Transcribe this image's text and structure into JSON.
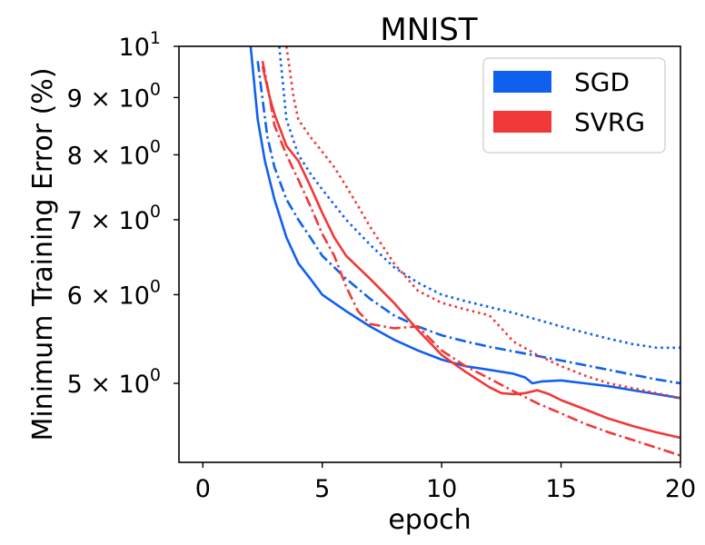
{
  "chart_data": {
    "type": "line",
    "title": "MNIST",
    "xlabel": "epoch",
    "ylabel": "Minimum Training Error (%)",
    "xlim": [
      -1.0,
      20.0
    ],
    "ylim": [
      4.25,
      10.0
    ],
    "yscale": "log",
    "grid": false,
    "legend_placement": "top-right",
    "x_ticks": [
      {
        "value": 0,
        "label": "0"
      },
      {
        "value": 5,
        "label": "5"
      },
      {
        "value": 10,
        "label": "10"
      },
      {
        "value": 15,
        "label": "15"
      },
      {
        "value": 20,
        "label": "20"
      }
    ],
    "y_ticks": [
      {
        "value": 10,
        "base": "10",
        "exp": "1"
      },
      {
        "value": 9,
        "base": "9 × 10",
        "exp": "0"
      },
      {
        "value": 8,
        "base": "8 × 10",
        "exp": "0"
      },
      {
        "value": 7,
        "base": "7 × 10",
        "exp": "0"
      },
      {
        "value": 6,
        "base": "6 × 10",
        "exp": "0"
      },
      {
        "value": 5,
        "base": "5 × 10",
        "exp": "0"
      }
    ],
    "legend": [
      {
        "label": "SGD",
        "color": "#1060f0"
      },
      {
        "label": "SVRG",
        "color": "#f03838"
      }
    ],
    "series": [
      {
        "group": "SGD",
        "color": "#1060f0",
        "style": "solid",
        "x": [
          2.0,
          2.3,
          2.6,
          3.0,
          3.5,
          4.0,
          4.5,
          5.0,
          6.0,
          7.0,
          8.0,
          9.0,
          10.0,
          11.0,
          12.0,
          13.0,
          13.5,
          13.8,
          14.2,
          15.0,
          16.0,
          17.0,
          18.0,
          19.0,
          20.0
        ],
        "y": [
          10.0,
          8.6,
          7.9,
          7.3,
          6.75,
          6.4,
          6.2,
          6.0,
          5.8,
          5.62,
          5.47,
          5.35,
          5.25,
          5.18,
          5.14,
          5.1,
          5.06,
          5.0,
          5.02,
          5.03,
          5.0,
          4.97,
          4.93,
          4.89,
          4.85
        ]
      },
      {
        "group": "SGD",
        "color": "#1060f0",
        "style": "dashdot",
        "x": [
          2.3,
          2.7,
          3.0,
          3.5,
          4.0,
          4.5,
          5.0,
          6.0,
          7.0,
          8.0,
          9.0,
          10.0,
          11.0,
          12.0,
          13.0,
          14.0,
          15.0,
          16.0,
          17.0,
          18.0,
          19.0,
          20.0
        ],
        "y": [
          9.7,
          8.3,
          7.8,
          7.3,
          7.0,
          6.75,
          6.5,
          6.2,
          5.95,
          5.75,
          5.62,
          5.52,
          5.45,
          5.39,
          5.34,
          5.29,
          5.24,
          5.19,
          5.14,
          5.09,
          5.04,
          5.0
        ]
      },
      {
        "group": "SGD",
        "color": "#1060f0",
        "style": "dotted",
        "x": [
          3.2,
          3.5,
          4.0,
          4.5,
          5.0,
          6.0,
          7.0,
          8.0,
          9.0,
          10.0,
          11.0,
          12.0,
          13.0,
          14.0,
          15.0,
          16.0,
          17.0,
          18.0,
          19.0,
          20.0
        ],
        "y": [
          10.0,
          8.6,
          8.0,
          7.7,
          7.45,
          7.0,
          6.65,
          6.35,
          6.15,
          6.0,
          5.92,
          5.85,
          5.78,
          5.7,
          5.62,
          5.55,
          5.48,
          5.42,
          5.38,
          5.38
        ]
      },
      {
        "group": "SVRG",
        "color": "#f03838",
        "style": "solid",
        "x": [
          2.5,
          2.8,
          3.0,
          3.5,
          4.0,
          4.5,
          5.0,
          5.5,
          6.0,
          7.0,
          8.0,
          9.0,
          10.0,
          11.0,
          12.0,
          12.5,
          13.0,
          13.5,
          14.0,
          14.5,
          15.0,
          16.0,
          17.0,
          18.0,
          19.0,
          20.0
        ],
        "y": [
          9.6,
          9.0,
          8.7,
          8.15,
          7.9,
          7.5,
          7.1,
          6.75,
          6.5,
          6.2,
          5.9,
          5.58,
          5.3,
          5.12,
          4.96,
          4.9,
          4.89,
          4.9,
          4.93,
          4.89,
          4.83,
          4.74,
          4.65,
          4.58,
          4.52,
          4.47
        ]
      },
      {
        "group": "SVRG",
        "color": "#f03838",
        "style": "dashdot",
        "x": [
          2.5,
          2.8,
          3.0,
          3.5,
          4.0,
          4.5,
          5.0,
          5.5,
          6.0,
          6.5,
          7.0,
          8.0,
          9.0,
          10.0,
          11.0,
          12.0,
          13.0,
          14.0,
          15.0,
          16.0,
          17.0,
          18.0,
          19.0,
          20.0
        ],
        "y": [
          9.7,
          9.0,
          8.5,
          8.0,
          7.6,
          7.2,
          6.8,
          6.5,
          6.1,
          5.8,
          5.65,
          5.6,
          5.62,
          5.35,
          5.18,
          5.05,
          4.92,
          4.8,
          4.7,
          4.6,
          4.52,
          4.45,
          4.38,
          4.31
        ]
      },
      {
        "group": "SVRG",
        "color": "#f03838",
        "style": "dotted",
        "x": [
          3.5,
          3.8,
          4.0,
          4.5,
          5.0,
          5.5,
          6.0,
          6.5,
          7.0,
          8.0,
          9.0,
          10.0,
          11.0,
          12.0,
          12.5,
          13.0,
          14.0,
          15.0,
          16.0,
          17.0,
          18.0,
          19.0,
          20.0
        ],
        "y": [
          10.0,
          9.0,
          8.6,
          8.3,
          8.05,
          7.8,
          7.5,
          7.2,
          6.9,
          6.4,
          6.05,
          5.9,
          5.82,
          5.75,
          5.6,
          5.45,
          5.3,
          5.18,
          5.08,
          5.0,
          4.95,
          4.9,
          4.85
        ]
      }
    ]
  }
}
